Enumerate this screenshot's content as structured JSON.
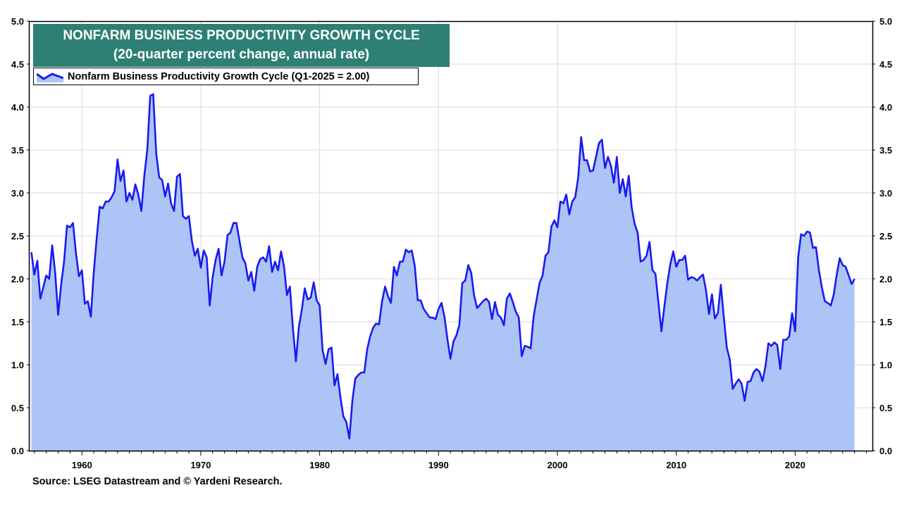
{
  "header": {
    "title": "NONFARM BUSINESS PRODUCTIVITY GROWTH CYCLE",
    "subtitle": "(20-quarter percent change, annual rate)"
  },
  "footer": {
    "source": "Source: LSEG Datastream and © Yardeni Research."
  },
  "colors": {
    "title_bg": "#2e7f74",
    "line": "#1a1aee",
    "fill": "#adc4f7",
    "grid": "#d9d9d9"
  },
  "chart_data": {
    "type": "area",
    "title": "NONFARM BUSINESS PRODUCTIVITY GROWTH CYCLE",
    "subtitle": "(20-quarter percent change, annual rate)",
    "xlabel": "",
    "ylabel": "",
    "xlim": [
      1955.6,
      2026.5
    ],
    "ylim": [
      0,
      5
    ],
    "x_ticks": [
      1960,
      1970,
      1980,
      1990,
      2000,
      2010,
      2020
    ],
    "y_ticks": [
      "0.0",
      "0.5",
      "1.0",
      "1.5",
      "2.0",
      "2.5",
      "3.0",
      "3.5",
      "4.0",
      "4.5",
      "5.0"
    ],
    "y_axes": "left and right",
    "grid": true,
    "legend": {
      "position": "top-left",
      "entries": [
        "Nonfarm Business Productivity Growth Cycle (Q1-2025 = 2.00)"
      ]
    },
    "series": [
      {
        "name": "Nonfarm Business Productivity Growth Cycle (Q1-2025 = 2.00)",
        "points": [
          [
            1955.75,
            2.31
          ],
          [
            1956.0,
            2.05
          ],
          [
            1956.25,
            2.21
          ],
          [
            1956.5,
            1.77
          ],
          [
            1956.75,
            1.9
          ],
          [
            1957.0,
            2.04
          ],
          [
            1957.25,
            2.0
          ],
          [
            1957.5,
            2.39
          ],
          [
            1957.75,
            2.07
          ],
          [
            1958.0,
            1.58
          ],
          [
            1958.25,
            1.93
          ],
          [
            1958.5,
            2.2
          ],
          [
            1958.75,
            2.62
          ],
          [
            1959.0,
            2.6
          ],
          [
            1959.25,
            2.65
          ],
          [
            1959.5,
            2.3
          ],
          [
            1959.75,
            2.03
          ],
          [
            1960.0,
            2.1
          ],
          [
            1960.25,
            1.71
          ],
          [
            1960.5,
            1.74
          ],
          [
            1960.75,
            1.56
          ],
          [
            1961.0,
            2.08
          ],
          [
            1961.25,
            2.48
          ],
          [
            1961.5,
            2.84
          ],
          [
            1961.75,
            2.82
          ],
          [
            1962.0,
            2.9
          ],
          [
            1962.25,
            2.9
          ],
          [
            1962.5,
            2.95
          ],
          [
            1962.75,
            3.02
          ],
          [
            1963.0,
            3.39
          ],
          [
            1963.25,
            3.14
          ],
          [
            1963.5,
            3.26
          ],
          [
            1963.75,
            2.9
          ],
          [
            1964.0,
            3.0
          ],
          [
            1964.25,
            2.92
          ],
          [
            1964.5,
            3.1
          ],
          [
            1964.75,
            2.98
          ],
          [
            1965.0,
            2.79
          ],
          [
            1965.25,
            3.2
          ],
          [
            1965.5,
            3.5
          ],
          [
            1965.75,
            4.13
          ],
          [
            1966.0,
            4.15
          ],
          [
            1966.25,
            3.46
          ],
          [
            1966.5,
            3.18
          ],
          [
            1966.75,
            3.15
          ],
          [
            1967.0,
            2.96
          ],
          [
            1967.25,
            3.11
          ],
          [
            1967.5,
            2.88
          ],
          [
            1967.75,
            2.79
          ],
          [
            1968.0,
            3.19
          ],
          [
            1968.25,
            3.22
          ],
          [
            1968.5,
            2.73
          ],
          [
            1968.75,
            2.7
          ],
          [
            1969.0,
            2.73
          ],
          [
            1969.25,
            2.44
          ],
          [
            1969.5,
            2.27
          ],
          [
            1969.75,
            2.35
          ],
          [
            1970.0,
            2.13
          ],
          [
            1970.25,
            2.33
          ],
          [
            1970.5,
            2.25
          ],
          [
            1970.75,
            1.69
          ],
          [
            1971.0,
            2.02
          ],
          [
            1971.25,
            2.22
          ],
          [
            1971.5,
            2.35
          ],
          [
            1971.75,
            2.04
          ],
          [
            1972.0,
            2.2
          ],
          [
            1972.25,
            2.51
          ],
          [
            1972.5,
            2.54
          ],
          [
            1972.75,
            2.65
          ],
          [
            1973.0,
            2.65
          ],
          [
            1973.25,
            2.45
          ],
          [
            1973.5,
            2.25
          ],
          [
            1973.75,
            2.18
          ],
          [
            1974.0,
            1.98
          ],
          [
            1974.25,
            2.08
          ],
          [
            1974.5,
            1.86
          ],
          [
            1974.75,
            2.14
          ],
          [
            1975.0,
            2.23
          ],
          [
            1975.25,
            2.25
          ],
          [
            1975.5,
            2.2
          ],
          [
            1975.75,
            2.38
          ],
          [
            1976.0,
            2.08
          ],
          [
            1976.25,
            2.2
          ],
          [
            1976.5,
            2.1
          ],
          [
            1976.75,
            2.32
          ],
          [
            1977.0,
            2.15
          ],
          [
            1977.25,
            1.81
          ],
          [
            1977.5,
            1.91
          ],
          [
            1977.75,
            1.43
          ],
          [
            1978.0,
            1.04
          ],
          [
            1978.25,
            1.44
          ],
          [
            1978.5,
            1.64
          ],
          [
            1978.75,
            1.89
          ],
          [
            1979.0,
            1.76
          ],
          [
            1979.25,
            1.78
          ],
          [
            1979.5,
            1.96
          ],
          [
            1979.75,
            1.75
          ],
          [
            1980.0,
            1.69
          ],
          [
            1980.25,
            1.17
          ],
          [
            1980.5,
            1.01
          ],
          [
            1980.75,
            1.18
          ],
          [
            1981.0,
            1.2
          ],
          [
            1981.25,
            0.76
          ],
          [
            1981.5,
            0.89
          ],
          [
            1981.75,
            0.62
          ],
          [
            1982.0,
            0.4
          ],
          [
            1982.25,
            0.33
          ],
          [
            1982.5,
            0.14
          ],
          [
            1982.75,
            0.58
          ],
          [
            1983.0,
            0.84
          ],
          [
            1983.25,
            0.88
          ],
          [
            1983.5,
            0.91
          ],
          [
            1983.75,
            0.91
          ],
          [
            1984.0,
            1.18
          ],
          [
            1984.25,
            1.33
          ],
          [
            1984.5,
            1.43
          ],
          [
            1984.75,
            1.48
          ],
          [
            1985.0,
            1.47
          ],
          [
            1985.25,
            1.74
          ],
          [
            1985.5,
            1.91
          ],
          [
            1985.75,
            1.8
          ],
          [
            1986.0,
            1.72
          ],
          [
            1986.25,
            2.14
          ],
          [
            1986.5,
            2.04
          ],
          [
            1986.75,
            2.2
          ],
          [
            1987.0,
            2.2
          ],
          [
            1987.25,
            2.34
          ],
          [
            1987.5,
            2.31
          ],
          [
            1987.75,
            2.33
          ],
          [
            1988.0,
            2.15
          ],
          [
            1988.25,
            1.75
          ],
          [
            1988.5,
            1.75
          ],
          [
            1988.75,
            1.65
          ],
          [
            1989.0,
            1.6
          ],
          [
            1989.25,
            1.55
          ],
          [
            1989.5,
            1.55
          ],
          [
            1989.75,
            1.53
          ],
          [
            1990.0,
            1.65
          ],
          [
            1990.25,
            1.72
          ],
          [
            1990.5,
            1.56
          ],
          [
            1990.75,
            1.3
          ],
          [
            1991.0,
            1.07
          ],
          [
            1991.25,
            1.27
          ],
          [
            1991.5,
            1.34
          ],
          [
            1991.75,
            1.46
          ],
          [
            1992.0,
            1.95
          ],
          [
            1992.25,
            1.98
          ],
          [
            1992.5,
            2.16
          ],
          [
            1992.75,
            2.07
          ],
          [
            1993.0,
            1.8
          ],
          [
            1993.25,
            1.66
          ],
          [
            1993.5,
            1.7
          ],
          [
            1993.75,
            1.74
          ],
          [
            1994.0,
            1.77
          ],
          [
            1994.25,
            1.73
          ],
          [
            1994.5,
            1.53
          ],
          [
            1994.75,
            1.73
          ],
          [
            1995.0,
            1.58
          ],
          [
            1995.25,
            1.55
          ],
          [
            1995.5,
            1.46
          ],
          [
            1995.75,
            1.77
          ],
          [
            1996.0,
            1.83
          ],
          [
            1996.25,
            1.73
          ],
          [
            1996.5,
            1.62
          ],
          [
            1996.75,
            1.55
          ],
          [
            1997.0,
            1.1
          ],
          [
            1997.25,
            1.22
          ],
          [
            1997.5,
            1.21
          ],
          [
            1997.75,
            1.19
          ],
          [
            1998.0,
            1.56
          ],
          [
            1998.25,
            1.76
          ],
          [
            1998.5,
            1.95
          ],
          [
            1998.75,
            2.04
          ],
          [
            1999.0,
            2.27
          ],
          [
            1999.25,
            2.31
          ],
          [
            1999.5,
            2.61
          ],
          [
            1999.75,
            2.68
          ],
          [
            2000.0,
            2.6
          ],
          [
            2000.25,
            2.9
          ],
          [
            2000.5,
            2.88
          ],
          [
            2000.75,
            2.98
          ],
          [
            2001.0,
            2.75
          ],
          [
            2001.25,
            2.9
          ],
          [
            2001.5,
            2.95
          ],
          [
            2001.75,
            3.18
          ],
          [
            2002.0,
            3.65
          ],
          [
            2002.25,
            3.38
          ],
          [
            2002.5,
            3.38
          ],
          [
            2002.75,
            3.25
          ],
          [
            2003.0,
            3.26
          ],
          [
            2003.25,
            3.42
          ],
          [
            2003.5,
            3.58
          ],
          [
            2003.75,
            3.62
          ],
          [
            2004.0,
            3.29
          ],
          [
            2004.25,
            3.42
          ],
          [
            2004.5,
            3.32
          ],
          [
            2004.75,
            3.12
          ],
          [
            2005.0,
            3.42
          ],
          [
            2005.25,
            3.0
          ],
          [
            2005.5,
            3.16
          ],
          [
            2005.75,
            2.96
          ],
          [
            2006.0,
            3.2
          ],
          [
            2006.25,
            2.83
          ],
          [
            2006.5,
            2.64
          ],
          [
            2006.75,
            2.54
          ],
          [
            2007.0,
            2.2
          ],
          [
            2007.25,
            2.22
          ],
          [
            2007.5,
            2.27
          ],
          [
            2007.75,
            2.43
          ],
          [
            2008.0,
            2.1
          ],
          [
            2008.25,
            2.06
          ],
          [
            2008.5,
            1.72
          ],
          [
            2008.75,
            1.39
          ],
          [
            2009.0,
            1.68
          ],
          [
            2009.25,
            1.95
          ],
          [
            2009.5,
            2.17
          ],
          [
            2009.75,
            2.32
          ],
          [
            2010.0,
            2.14
          ],
          [
            2010.25,
            2.22
          ],
          [
            2010.5,
            2.22
          ],
          [
            2010.75,
            2.27
          ],
          [
            2011.0,
            1.99
          ],
          [
            2011.25,
            2.02
          ],
          [
            2011.5,
            2.01
          ],
          [
            2011.75,
            1.98
          ],
          [
            2012.0,
            2.02
          ],
          [
            2012.25,
            2.05
          ],
          [
            2012.5,
            1.87
          ],
          [
            2012.75,
            1.59
          ],
          [
            2013.0,
            1.82
          ],
          [
            2013.25,
            1.54
          ],
          [
            2013.5,
            1.6
          ],
          [
            2013.75,
            1.93
          ],
          [
            2014.0,
            1.56
          ],
          [
            2014.25,
            1.2
          ],
          [
            2014.5,
            1.06
          ],
          [
            2014.75,
            0.72
          ],
          [
            2015.0,
            0.78
          ],
          [
            2015.25,
            0.83
          ],
          [
            2015.5,
            0.78
          ],
          [
            2015.75,
            0.58
          ],
          [
            2016.0,
            0.8
          ],
          [
            2016.25,
            0.81
          ],
          [
            2016.5,
            0.91
          ],
          [
            2016.75,
            0.95
          ],
          [
            2017.0,
            0.92
          ],
          [
            2017.25,
            0.81
          ],
          [
            2017.5,
            0.98
          ],
          [
            2017.75,
            1.25
          ],
          [
            2018.0,
            1.22
          ],
          [
            2018.25,
            1.26
          ],
          [
            2018.5,
            1.23
          ],
          [
            2018.75,
            0.95
          ],
          [
            2019.0,
            1.29
          ],
          [
            2019.25,
            1.29
          ],
          [
            2019.5,
            1.33
          ],
          [
            2019.75,
            1.6
          ],
          [
            2020.0,
            1.39
          ],
          [
            2020.25,
            2.25
          ],
          [
            2020.5,
            2.52
          ],
          [
            2020.75,
            2.5
          ],
          [
            2021.0,
            2.55
          ],
          [
            2021.25,
            2.54
          ],
          [
            2021.5,
            2.36
          ],
          [
            2021.75,
            2.37
          ],
          [
            2022.0,
            2.1
          ],
          [
            2022.25,
            1.9
          ],
          [
            2022.5,
            1.74
          ],
          [
            2022.75,
            1.72
          ],
          [
            2023.0,
            1.69
          ],
          [
            2023.25,
            1.82
          ],
          [
            2023.5,
            2.05
          ],
          [
            2023.75,
            2.24
          ],
          [
            2024.0,
            2.16
          ],
          [
            2024.25,
            2.14
          ],
          [
            2024.5,
            2.04
          ],
          [
            2024.75,
            1.94
          ],
          [
            2025.0,
            2.0
          ]
        ]
      }
    ]
  }
}
